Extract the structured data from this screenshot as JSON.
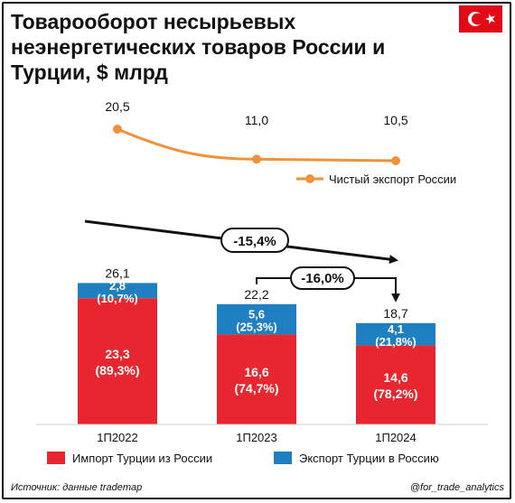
{
  "header": {
    "title": "Товарооборот несырьевых неэнергетических товаров России и Турции, $ млрд"
  },
  "flag": {
    "country": "turkey-flag",
    "color": "#e30a17"
  },
  "colors": {
    "import": "#e8262f",
    "export": "#1f7fc0",
    "line": "#f0923a",
    "arrow": "#111111"
  },
  "chart_data": {
    "type": "bar",
    "stacked": true,
    "categories": [
      "1П2022",
      "1П2023",
      "1П2024"
    ],
    "totals": [
      "26,1",
      "22,2",
      "18,7"
    ],
    "series": [
      {
        "name": "Импорт Турции из России",
        "values": [
          23.3,
          16.6,
          14.6
        ],
        "labels": [
          "23,3",
          "16,6",
          "14,6"
        ],
        "shares": [
          "(89,3%)",
          "(74,7%)",
          "(78,2%)"
        ]
      },
      {
        "name": "Экспорт Турции в Россию",
        "values": [
          2.8,
          5.6,
          4.1
        ],
        "labels": [
          "2,8",
          "5,6",
          "4,1"
        ],
        "shares": [
          "(10,7%)",
          "(25,3%)",
          "(21,8%)"
        ]
      }
    ],
    "line": {
      "name": "Чистый экспорт России",
      "values": [
        20.5,
        11.0,
        10.5
      ],
      "labels": [
        "20,5",
        "11,0",
        "10,5"
      ]
    },
    "annotations": [
      {
        "from": "1П2022",
        "to": "1П2024",
        "text": "-15,4%"
      },
      {
        "from": "1П2023",
        "to": "1П2024",
        "text": "-16,0%"
      }
    ],
    "legend_position": "bottom"
  },
  "footer": {
    "source": "Источник: данные trademap",
    "handle": "@for_trade_analytics"
  }
}
